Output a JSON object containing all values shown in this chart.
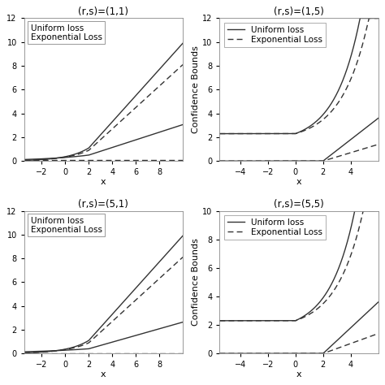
{
  "subplots": [
    {
      "title": "(r,s)=(1,1)",
      "xlim": [
        -3.5,
        10
      ],
      "ylim": [
        0,
        12
      ],
      "xticks": [
        -2,
        0,
        2,
        4,
        6,
        8
      ],
      "has_ylabel": false,
      "legend_lines": false,
      "r": 1,
      "s": 1
    },
    {
      "title": "(r,s)=(1,5)",
      "xlim": [
        -5.5,
        6
      ],
      "ylim": [
        0,
        12
      ],
      "xticks": [
        -4,
        -2,
        0,
        2,
        4
      ],
      "has_ylabel": true,
      "legend_lines": true,
      "r": 1,
      "s": 5
    },
    {
      "title": "(r,s)=(5,1)",
      "xlim": [
        -3.5,
        10
      ],
      "ylim": [
        0,
        12
      ],
      "xticks": [
        -2,
        0,
        2,
        4,
        6,
        8
      ],
      "has_ylabel": false,
      "legend_lines": false,
      "r": 5,
      "s": 1
    },
    {
      "title": "(r,s)=(5,5)",
      "xlim": [
        -5.5,
        6
      ],
      "ylim": [
        0,
        10
      ],
      "xticks": [
        -4,
        -2,
        0,
        2,
        4
      ],
      "has_ylabel": true,
      "legend_lines": true,
      "r": 5,
      "s": 5
    }
  ],
  "line_color": "#333333",
  "bg_color": "#ffffff",
  "title_fontsize": 8.5,
  "label_fontsize": 8,
  "tick_fontsize": 7,
  "legend_fontsize": 7.5
}
